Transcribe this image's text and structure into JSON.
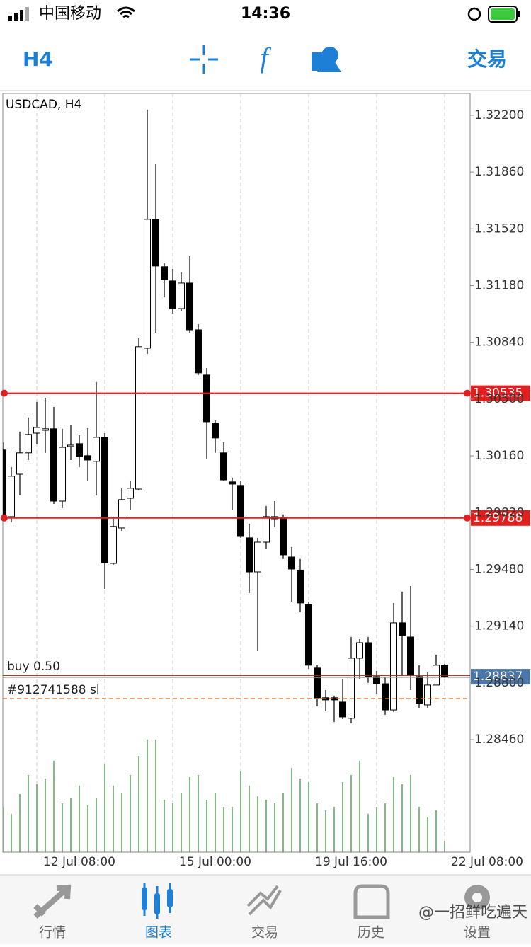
{
  "status_bar": {
    "carrier": "中国移动",
    "time": "14:36"
  },
  "toolbar": {
    "timeframe": "H4",
    "trade": "交易"
  },
  "tabs": {
    "items": [
      "行情",
      "图表",
      "交易",
      "历史",
      "设置"
    ],
    "active": 1
  },
  "watermark": "@一招鲜吃遍天",
  "chart_data": {
    "type": "candlestick",
    "title": "USDCAD, H4",
    "open": [
      1.30195,
      1.29796,
      1.3005,
      1.30178,
      1.30296,
      1.30313,
      1.30322,
      1.29889,
      1.30216,
      1.30233,
      1.30161,
      1.30127,
      1.30271,
      1.29516,
      1.29728,
      1.29906,
      1.29961,
      1.30805,
      1.31577,
      1.31293,
      1.31208,
      1.31042,
      1.31195,
      1.30915,
      1.30644,
      1.30356,
      1.30178,
      1.30004,
      1.29983,
      1.29669,
      1.29465,
      1.29643,
      1.29796,
      1.29792,
      1.29554,
      1.29474,
      1.2927,
      1.28889,
      1.28711,
      1.28711,
      1.28685,
      1.28588,
      1.28948,
      1.29041,
      1.28838,
      1.28795,
      1.28638,
      1.2916,
      1.29075,
      1.28838,
      1.28668,
      1.28787,
      1.28906
    ],
    "high": [
      1.30241,
      1.30093,
      1.30305,
      1.3039,
      1.30483,
      1.30508,
      1.30453,
      1.30322,
      1.30347,
      1.30284,
      1.30326,
      1.30602,
      1.30296,
      1.29796,
      1.29966,
      1.30008,
      1.30864,
      1.32234,
      1.31907,
      1.31314,
      1.3128,
      1.31259,
      1.31356,
      1.30949,
      1.30686,
      1.30373,
      1.30241,
      1.30029,
      1.30008,
      1.29754,
      1.29669,
      1.2986,
      1.29889,
      1.29809,
      1.29614,
      1.29542,
      1.29287,
      1.28906,
      1.28757,
      1.28723,
      1.28821,
      1.29075,
      1.29062,
      1.29075,
      1.28872,
      1.28833,
      1.29279,
      1.29347,
      1.2938,
      1.28906,
      1.28863,
      1.28969,
      1.28914
    ],
    "low": [
      1.29775,
      1.29762,
      1.29923,
      1.30135,
      1.30228,
      1.30178,
      1.29872,
      1.29847,
      1.30135,
      1.30093,
      1.30008,
      1.29923,
      1.29363,
      1.29508,
      1.29711,
      1.29838,
      1.29957,
      1.30771,
      1.30898,
      1.3111,
      1.31013,
      1.31026,
      1.30898,
      1.30644,
      1.30144,
      1.30178,
      1.30008,
      1.29838,
      1.29669,
      1.29338,
      1.2899,
      1.29601,
      1.29732,
      1.29542,
      1.29287,
      1.29224,
      1.28884,
      1.2866,
      1.2863,
      1.28566,
      1.28583,
      1.28558,
      1.28821,
      1.288,
      1.28736,
      1.28609,
      1.28626,
      1.28842,
      1.28757,
      1.28651,
      1.28651,
      1.28821,
      1.28829
    ],
    "close": [
      1.29804,
      1.30038,
      1.30178,
      1.30288,
      1.3033,
      1.30322,
      1.29889,
      1.30211,
      1.30224,
      1.30156,
      1.30135,
      1.30271,
      1.2952,
      1.29737,
      1.29898,
      1.29966,
      1.30814,
      1.31577,
      1.31297,
      1.31216,
      1.31042,
      1.31195,
      1.30915,
      1.30657,
      1.30364,
      1.30267,
      1.30016,
      1.29991,
      1.29677,
      1.29465,
      1.29643,
      1.29796,
      1.29783,
      1.29567,
      1.29482,
      1.29279,
      1.28906,
      1.28711,
      1.28698,
      1.28698,
      1.28596,
      1.28948,
      1.29041,
      1.28838,
      1.28795,
      1.28638,
      1.2916,
      1.29084,
      1.28846,
      1.28677,
      1.28787,
      1.28906,
      1.28837
    ],
    "up_color": "#ffffff",
    "down_color": "#000000",
    "volume": [
      64,
      54,
      82,
      109,
      96,
      104,
      129,
      69,
      76,
      94,
      66,
      76,
      124,
      94,
      84,
      109,
      136,
      159,
      159,
      74,
      69,
      84,
      106,
      109,
      74,
      84,
      64,
      64,
      114,
      94,
      79,
      74,
      69,
      84,
      119,
      104,
      99,
      69,
      59,
      64,
      99,
      109,
      129,
      54,
      64,
      69,
      106,
      96,
      109,
      64,
      49,
      59,
      16
    ],
    "volume_color": "#2e8b2e",
    "vlim": [
      0,
      1072
    ],
    "xlim": [
      0,
      55
    ],
    "xticks": [
      {
        "value": 9,
        "label": "12 Jul 08:00"
      },
      {
        "value": 25,
        "label": "15 Jul 00:00"
      },
      {
        "value": 41,
        "label": "19 Jul 16:00"
      },
      {
        "value": 57,
        "label": "22 Jul 08:00"
      }
    ],
    "xgrid": [
      4,
      12,
      20,
      28,
      36,
      44,
      52
    ],
    "ylim": [
      1.27786,
      1.32331
    ],
    "yticks": [
      {
        "value": 1.322,
        "label": "1.32200"
      },
      {
        "value": 1.3186,
        "label": "1.31860"
      },
      {
        "value": 1.3152,
        "label": "1.31520"
      },
      {
        "value": 1.3118,
        "label": "1.31180"
      },
      {
        "value": 1.3084,
        "label": "1.30840"
      },
      {
        "value": 1.305,
        "label": "1.30500"
      },
      {
        "value": 1.3016,
        "label": "1.30160"
      },
      {
        "value": 1.2982,
        "label": "1.29820"
      },
      {
        "value": 1.2948,
        "label": "1.29480"
      },
      {
        "value": 1.2914,
        "label": "1.29140"
      },
      {
        "value": 1.288,
        "label": "1.28800"
      },
      {
        "value": 1.2846,
        "label": "1.28460"
      }
    ],
    "grid": true,
    "levels": [
      {
        "value": 1.30535,
        "color": "#e0201e"
      },
      {
        "value": 1.29788,
        "color": "#e0201e"
      }
    ],
    "orders": [
      {
        "label": "buy 0.50",
        "price": 1.28845,
        "color": "#8b2a10",
        "style": "solid"
      },
      {
        "label": "#912741588 sl",
        "price": 1.28706,
        "color": "#e07020",
        "style": "dashed"
      }
    ],
    "bid": 1.28837,
    "bid_color": "#4a77a8"
  }
}
